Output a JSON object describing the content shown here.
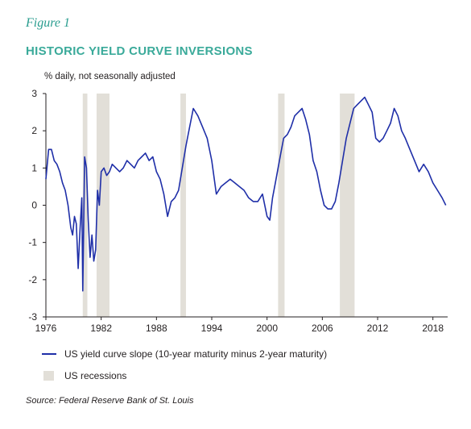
{
  "figure_label": "Figure 1",
  "title": "HISTORIC YIELD CURVE INVERSIONS",
  "units_label": "% daily, not seasonally adjusted",
  "legend": {
    "series_label": "US yield curve slope (10-year maturity minus 2-year maturity)",
    "recession_label": "US recessions"
  },
  "source": "Source: Federal Reserve Bank of St. Louis",
  "colors": {
    "line": "#1f2fa8",
    "recession": "#e2dfd8",
    "title": "#3aaa9a",
    "figure_label": "#2a9d8f"
  },
  "chart_data": {
    "type": "line",
    "xlim": [
      1976,
      2019.6
    ],
    "ylim": [
      -3,
      3
    ],
    "x_ticks": [
      "1976",
      "1982",
      "1988",
      "1994",
      "2000",
      "2006",
      "2012",
      "2018"
    ],
    "y_ticks": [
      "3",
      "2",
      "1",
      "0",
      "-1",
      "-2",
      "-3"
    ],
    "recessions": [
      [
        1980.0,
        1980.5
      ],
      [
        1981.5,
        1982.9
      ],
      [
        1990.6,
        1991.2
      ],
      [
        2001.2,
        2001.9
      ],
      [
        2007.9,
        2009.5
      ]
    ],
    "series": [
      {
        "x": [
          1976.0,
          1976.3,
          1976.6,
          1976.9,
          1977.2,
          1977.5,
          1977.8,
          1978.1,
          1978.4,
          1978.7,
          1978.9,
          1979.1,
          1979.3,
          1979.5,
          1979.7,
          1979.9,
          1980.0,
          1980.2,
          1980.4,
          1980.6,
          1980.8,
          1981.0,
          1981.2,
          1981.4,
          1981.6,
          1981.8,
          1982.0,
          1982.3,
          1982.6,
          1982.9,
          1983.2,
          1983.6,
          1984.0,
          1984.4,
          1984.8,
          1985.2,
          1985.6,
          1986.0,
          1986.4,
          1986.8,
          1987.2,
          1987.6,
          1988.0,
          1988.4,
          1988.8,
          1989.2,
          1989.6,
          1990.0,
          1990.4,
          1990.8,
          1991.2,
          1991.6,
          1992.0,
          1992.5,
          1993.0,
          1993.5,
          1994.0,
          1994.5,
          1995.0,
          1995.5,
          1996.0,
          1996.5,
          1997.0,
          1997.5,
          1998.0,
          1998.5,
          1999.0,
          1999.5,
          2000.0,
          2000.3,
          2000.6,
          2000.9,
          2001.2,
          2001.5,
          2001.8,
          2002.2,
          2002.6,
          2003.0,
          2003.4,
          2003.8,
          2004.2,
          2004.6,
          2005.0,
          2005.4,
          2005.8,
          2006.2,
          2006.6,
          2007.0,
          2007.4,
          2007.8,
          2008.2,
          2008.6,
          2009.0,
          2009.4,
          2009.8,
          2010.2,
          2010.6,
          2011.0,
          2011.4,
          2011.8,
          2012.2,
          2012.6,
          2013.0,
          2013.4,
          2013.8,
          2014.2,
          2014.6,
          2015.0,
          2015.5,
          2016.0,
          2016.5,
          2017.0,
          2017.5,
          2018.0,
          2018.5,
          2019.0,
          2019.4
        ],
        "y": [
          0.7,
          1.5,
          1.5,
          1.2,
          1.1,
          0.9,
          0.6,
          0.4,
          0.0,
          -0.6,
          -0.8,
          -0.3,
          -0.5,
          -1.7,
          -0.7,
          0.2,
          -2.3,
          1.3,
          1.0,
          -0.4,
          -1.4,
          -0.8,
          -1.5,
          -1.2,
          0.4,
          0.0,
          0.9,
          1.0,
          0.8,
          0.9,
          1.1,
          1.0,
          0.9,
          1.0,
          1.2,
          1.1,
          1.0,
          1.2,
          1.3,
          1.4,
          1.2,
          1.3,
          0.9,
          0.7,
          0.3,
          -0.3,
          0.1,
          0.2,
          0.4,
          1.0,
          1.6,
          2.1,
          2.6,
          2.4,
          2.1,
          1.8,
          1.2,
          0.3,
          0.5,
          0.6,
          0.7,
          0.6,
          0.5,
          0.4,
          0.2,
          0.1,
          0.1,
          0.3,
          -0.3,
          -0.4,
          0.2,
          0.6,
          1.0,
          1.4,
          1.8,
          1.9,
          2.1,
          2.4,
          2.5,
          2.6,
          2.3,
          1.9,
          1.2,
          0.9,
          0.4,
          0.0,
          -0.1,
          -0.1,
          0.1,
          0.6,
          1.2,
          1.8,
          2.2,
          2.6,
          2.7,
          2.8,
          2.9,
          2.7,
          2.5,
          1.8,
          1.7,
          1.8,
          2.0,
          2.2,
          2.6,
          2.4,
          2.0,
          1.8,
          1.5,
          1.2,
          0.9,
          1.1,
          0.9,
          0.6,
          0.4,
          0.2,
          0.0
        ]
      }
    ]
  }
}
